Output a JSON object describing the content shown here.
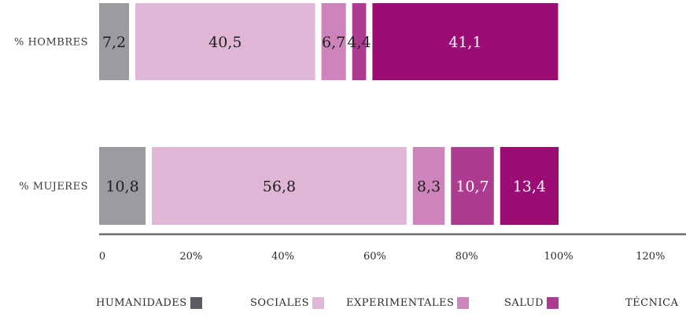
{
  "chart_data": {
    "type": "bar",
    "orientation": "horizontal",
    "stacked": true,
    "categories": [
      "% HOMBRES",
      "% MUJERES"
    ],
    "series": [
      {
        "name": "HUMANIDADES",
        "values": [
          7.2,
          10.8
        ],
        "labels": [
          "7,2",
          "10,8"
        ],
        "color": "#9d9b9f"
      },
      {
        "name": "SOCIALES",
        "values": [
          40.5,
          56.8
        ],
        "labels": [
          "40,5",
          "56,8"
        ],
        "color": "#e0b6d6"
      },
      {
        "name": "EXPERIMENTALES",
        "values": [
          6.7,
          8.3
        ],
        "labels": [
          "6,7",
          "8,3"
        ],
        "color": "#cc84ba"
      },
      {
        "name": "SALUD",
        "values": [
          4.4,
          10.7
        ],
        "labels": [
          "4,4",
          "10,7"
        ],
        "color": "#ad3c90"
      },
      {
        "name": "TÉCNICA",
        "values": [
          41.1,
          13.4
        ],
        "labels": [
          "41,1",
          "13,4"
        ],
        "color": "#9b0c74"
      }
    ],
    "x_ticks": [
      "0",
      "20%",
      "40%",
      "60%",
      "80%",
      "100%",
      "120%"
    ],
    "x_tick_values": [
      0,
      20,
      40,
      60,
      80,
      100,
      120
    ],
    "xlim": [
      0,
      125
    ],
    "grid": false,
    "legend_position": "bottom"
  }
}
